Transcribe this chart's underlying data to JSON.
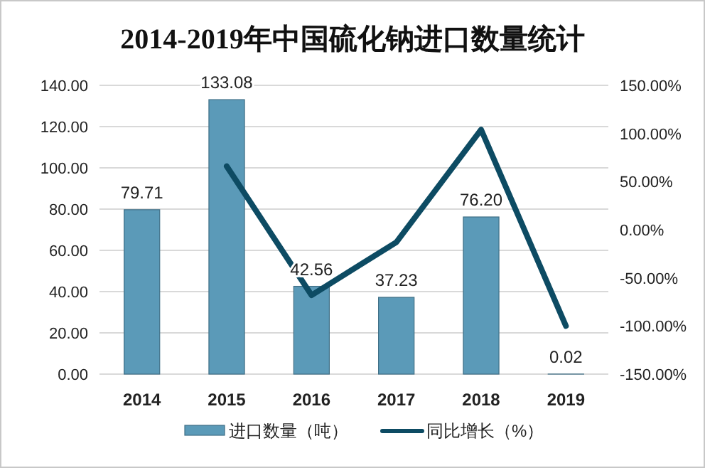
{
  "chart_data": {
    "type": "bar",
    "title": "2014-2019年中国硫化钠进口数量统计",
    "categories": [
      "2014",
      "2015",
      "2016",
      "2017",
      "2018",
      "2019"
    ],
    "series": [
      {
        "name": "进口数量（吨）",
        "color": "#5b9ab8",
        "values": [
          79.71,
          133.08,
          42.56,
          37.23,
          76.2,
          0.02
        ],
        "value_labels": [
          "79.71",
          "133.08",
          "42.56",
          "37.23",
          "76.20",
          "0.02"
        ]
      },
      {
        "name": "同比增长（%）",
        "type": "line",
        "axis": "y2",
        "color": "#0d4b63",
        "values": [
          null,
          66,
          -68,
          -13,
          104,
          -100
        ]
      }
    ],
    "ylim": [
      0,
      140
    ],
    "yticks": [
      {
        "value": 0,
        "label": "0.00"
      },
      {
        "value": 20,
        "label": "20.00"
      },
      {
        "value": 40,
        "label": "40.00"
      },
      {
        "value": 60,
        "label": "60.00"
      },
      {
        "value": 80,
        "label": "80.00"
      },
      {
        "value": 100,
        "label": "100.00"
      },
      {
        "value": 120,
        "label": "120.00"
      },
      {
        "value": 140,
        "label": "140.00"
      }
    ],
    "y2lim": [
      -150,
      150
    ],
    "y2ticks": [
      {
        "value": -150,
        "label": "-150.00%"
      },
      {
        "value": -100,
        "label": "-100.00%"
      },
      {
        "value": -50,
        "label": "-50.00%"
      },
      {
        "value": 0,
        "label": "0.00%"
      },
      {
        "value": 50,
        "label": "50.00%"
      },
      {
        "value": 100,
        "label": "100.00%"
      },
      {
        "value": 150,
        "label": "150.00%"
      }
    ],
    "grid": "y",
    "legend": "bottom",
    "marker": "none",
    "line_style": "solid"
  }
}
